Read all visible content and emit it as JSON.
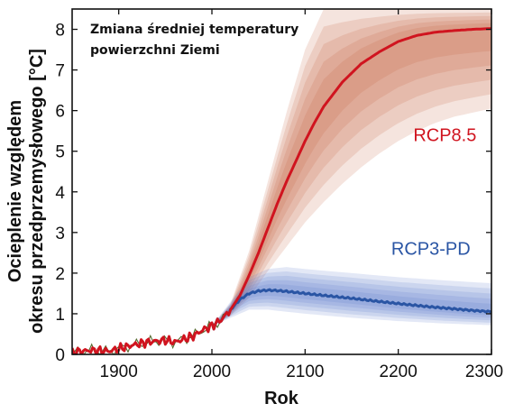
{
  "chart_data": {
    "type": "area",
    "title_lines": [
      "Zmiana średniej temperatury",
      "powierzchni Ziemi"
    ],
    "xlabel": "Rok",
    "ylabel_lines": [
      "Ocieplenie względem",
      "okresu przedprzemysłowego [°C]"
    ],
    "xlim": [
      1850,
      2300
    ],
    "ylim": [
      0,
      8.5
    ],
    "xticks": [
      1900,
      2000,
      2100,
      2200,
      2300
    ],
    "yticks": [
      0,
      1,
      2,
      3,
      4,
      5,
      6,
      7,
      8
    ],
    "grid": false,
    "colors": {
      "rcp85_line": "#d0141f",
      "rcp85_band": "#c4603a",
      "rcp3pd_line": "#2a55a4",
      "rcp3pd_band": "#5a78c8",
      "historical_obs": "#556b2f"
    },
    "series": [
      {
        "name": "RCP8.5",
        "x": [
          1850,
          1870,
          1890,
          1910,
          1930,
          1950,
          1960,
          1980,
          1990,
          2000,
          2010,
          2020,
          2030,
          2040,
          2050,
          2060,
          2070,
          2080,
          2090,
          2100,
          2110,
          2120,
          2140,
          2160,
          2180,
          2200,
          2220,
          2240,
          2260,
          2280,
          2300
        ],
        "values": [
          0.05,
          0.1,
          0.08,
          0.2,
          0.3,
          0.35,
          0.3,
          0.45,
          0.6,
          0.7,
          0.85,
          1.1,
          1.45,
          1.95,
          2.5,
          3.1,
          3.7,
          4.25,
          4.75,
          5.25,
          5.7,
          6.1,
          6.7,
          7.15,
          7.45,
          7.7,
          7.85,
          7.93,
          7.97,
          8.0,
          8.02
        ],
        "uncertainty": {
          "x": [
            2000,
            2020,
            2040,
            2060,
            2080,
            2100,
            2120,
            2140,
            2160,
            2180,
            2200,
            2220,
            2240,
            2260,
            2280,
            2300
          ],
          "outer_lower": [
            0.7,
            0.95,
            1.4,
            2.05,
            2.65,
            3.25,
            3.75,
            4.2,
            4.6,
            4.95,
            5.25,
            5.5,
            5.7,
            5.85,
            5.95,
            6.05
          ],
          "outer_upper": [
            0.7,
            1.25,
            2.55,
            4.25,
            5.95,
            7.5,
            8.5,
            8.5,
            8.5,
            8.5,
            8.5,
            8.5,
            8.5,
            8.5,
            8.5,
            8.5
          ]
        }
      },
      {
        "name": "RCP3-PD",
        "x": [
          2000,
          2010,
          2020,
          2030,
          2040,
          2050,
          2060,
          2070,
          2080,
          2100,
          2120,
          2150,
          2180,
          2200,
          2230,
          2260,
          2280,
          2300
        ],
        "values": [
          0.7,
          0.85,
          1.1,
          1.35,
          1.5,
          1.56,
          1.58,
          1.57,
          1.55,
          1.5,
          1.45,
          1.38,
          1.3,
          1.25,
          1.18,
          1.12,
          1.08,
          1.05
        ],
        "uncertainty": {
          "x": [
            2000,
            2020,
            2040,
            2060,
            2080,
            2100,
            2150,
            2200,
            2250,
            2300
          ],
          "outer_lower": [
            0.7,
            0.9,
            1.1,
            1.1,
            1.05,
            1.0,
            0.9,
            0.82,
            0.76,
            0.72
          ],
          "outer_upper": [
            0.7,
            1.3,
            1.9,
            2.1,
            2.15,
            2.1,
            2.0,
            1.9,
            1.82,
            1.75
          ]
        }
      }
    ],
    "annotations": [
      {
        "text": "RCP8.5",
        "x": 2250,
        "y": 5.25,
        "color": "#d0141f"
      },
      {
        "text": "RCP3-PD",
        "x": 2235,
        "y": 2.45,
        "color": "#2a55a4"
      }
    ]
  }
}
